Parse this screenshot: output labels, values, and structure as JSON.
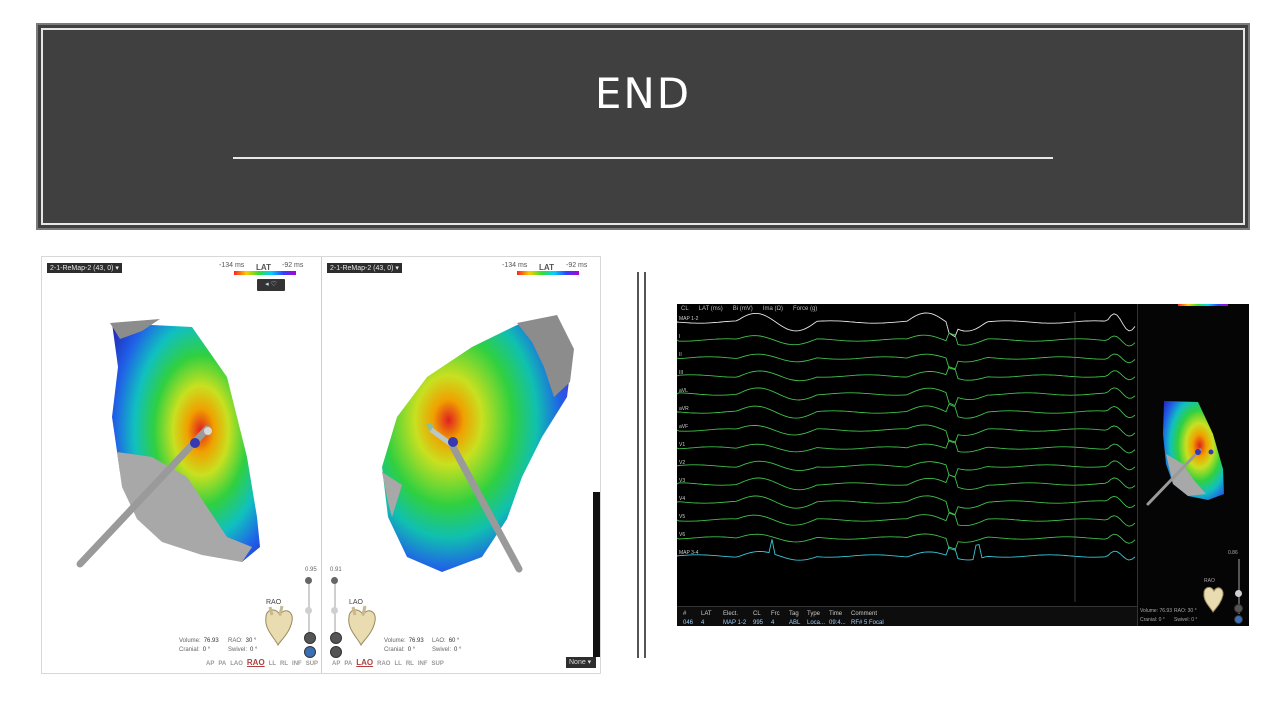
{
  "slide": {
    "title": "END"
  },
  "map_panel": {
    "left_map": {
      "map_label": "2-1-ReMap-2 (43, 0)",
      "lat": {
        "label": "LAT",
        "min": "-134 ms",
        "max": "-92 ms"
      },
      "view": "RAO",
      "slider_value": "0.95",
      "volume_label": "Volume:",
      "volume_value": "76.93",
      "rao_label": "RAO:",
      "rao_value": "30 °",
      "cranial_label": "Cranial:",
      "cranial_value": "0 °",
      "swivel_label": "Swivel:",
      "swivel_value": "0 °"
    },
    "right_map": {
      "map_label": "2-1-ReMap-2 (43, 0)",
      "lat": {
        "label": "LAT",
        "min": "-134 ms",
        "max": "-92 ms"
      },
      "view": "LAO",
      "slider_value": "0.91",
      "volume_label": "Volume:",
      "volume_value": "76.93",
      "lao_label": "LAO:",
      "lao_value": "60 °",
      "cranial_label": "Cranial:",
      "cranial_value": "0 °",
      "swivel_label": "Swivel:",
      "swivel_value": "0 °"
    },
    "view_buttons": [
      "AP",
      "PA",
      "LAO",
      "RAO",
      "LL",
      "RL",
      "INF",
      "SUP"
    ],
    "left_active_view": "RAO",
    "right_active_view": "LAO",
    "overlay_select": "None"
  },
  "ecg_panel": {
    "status": {
      "cl_label": "CL",
      "lat_label": "LAT (ms)",
      "bi_label": "Bi (mV)",
      "ima_label": "Ima (Ω)",
      "force_label": "Force (g)"
    },
    "lead_labels": [
      "MAP 1-2",
      "I",
      "II",
      "III",
      "aVL",
      "aVR",
      "aVF",
      "V1",
      "V2",
      "V3",
      "V4",
      "V5",
      "V6",
      "MAP 3-4"
    ],
    "table": {
      "headers": [
        "#",
        "LAT",
        "Elect.",
        "CL",
        "Frc",
        "Tag",
        "Type",
        "Time",
        "Comment"
      ],
      "row": [
        "046",
        "4",
        "MAP 1-2",
        "995",
        "4",
        "ABL",
        "Loca...",
        "09:4...",
        "RF# 5 Focal"
      ]
    },
    "mini_map": {
      "slider_value": "0.86",
      "view": "RAO",
      "volume_label": "Volume:",
      "volume_value": "76.93",
      "rao_label": "RAO:",
      "rao_value": "30 °",
      "cranial_label": "Cranial:",
      "cranial_value": "0 °",
      "swivel_label": "Swivel:",
      "swivel_value": "0 °"
    }
  },
  "colors": {
    "banner_bg": "#404040",
    "ecg_trace": "#3fc14a",
    "ecg_cyan": "#38c8d8",
    "lat_high": "#ff2020",
    "lat_low": "#b000d0"
  }
}
